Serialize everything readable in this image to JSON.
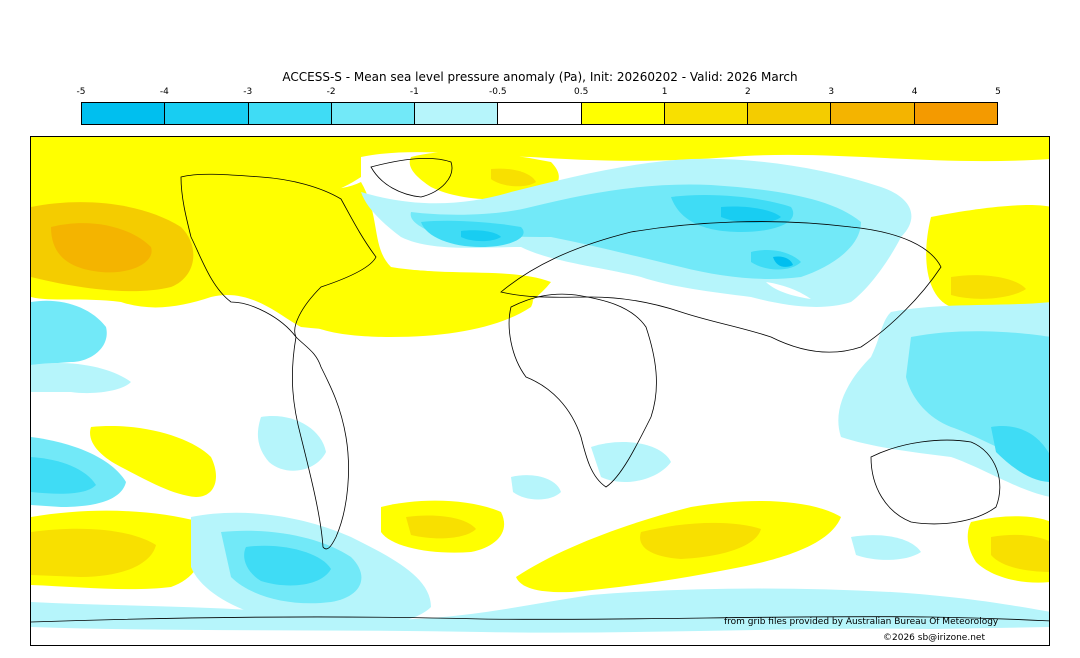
{
  "title": "ACCESS-S - Mean sea level pressure anomaly (Pa), Init: 20260202 - Valid: 2026 March",
  "legend": {
    "ticks": [
      "-5",
      "-4",
      "-3",
      "-2",
      "-1",
      "-0.5",
      "0.5",
      "1",
      "2",
      "3",
      "4",
      "5"
    ],
    "colors": [
      "#00bfef",
      "#18cdf2",
      "#3fdcf5",
      "#72e9f8",
      "#b6f5fb",
      "#ffffff",
      "#ffff00",
      "#f8e000",
      "#f4cc00",
      "#f4b400",
      "#f49a00"
    ]
  },
  "credit": {
    "source": "from grib files provided by Australian Bureau Of Meteorology",
    "copyright": "©2026 sb@irizone.net"
  }
}
